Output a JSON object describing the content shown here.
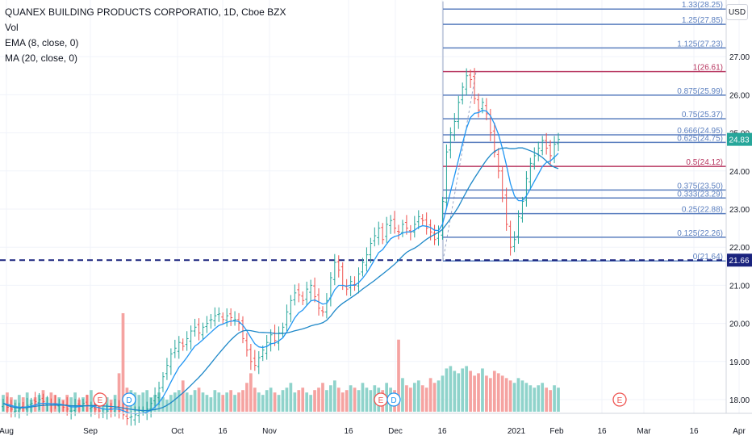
{
  "header": {
    "title": "QUANEX BUILDING PRODUCTS CORPORATIO, 1D, Cboe BZX",
    "indicators": [
      "Vol",
      "EMA (8, close, 0)",
      "MA (20, close, 0)"
    ],
    "currency": "USD"
  },
  "price_tags": {
    "current": "24.83",
    "level": "21.66"
  },
  "events": {
    "earnings_label": "E",
    "dividend_label": "D"
  },
  "colors": {
    "up": "#26a69a",
    "down": "#ef5350",
    "vol_up": "#8fd3cb",
    "vol_down": "#f5a3a1",
    "ema": "#2196f3",
    "ma": "#1e88c8",
    "fib_blue": "#5b7fbf",
    "fib_red": "#b7355f",
    "level_line": "#1a237e",
    "current_tag": "#26a69a"
  },
  "chart_data": {
    "type": "candlestick",
    "y_axis_ticks": [
      "18.00",
      "19.00",
      "20.00",
      "21.00",
      "22.00",
      "23.00",
      "24.00",
      "25.00",
      "26.00",
      "27.00"
    ],
    "x_axis_ticks": [
      "Aug",
      "Sep",
      "Oct",
      "16",
      "Nov",
      "16",
      "Dec",
      "16",
      "2021",
      "Feb",
      "16",
      "Mar",
      "16",
      "Apr"
    ],
    "ylim": [
      17.6,
      28.6
    ],
    "fib_levels": [
      {
        "label": "1.33(28.25)",
        "value": 28.25,
        "color": "blue"
      },
      {
        "label": "1.25(27.85)",
        "value": 27.85,
        "color": "blue"
      },
      {
        "label": "1.125(27.23)",
        "value": 27.23,
        "color": "blue"
      },
      {
        "label": "1(26.61)",
        "value": 26.61,
        "color": "red"
      },
      {
        "label": "0.875(25.99)",
        "value": 25.99,
        "color": "blue"
      },
      {
        "label": "0.75(25.37)",
        "value": 25.37,
        "color": "blue"
      },
      {
        "label": "0.666(24.95)",
        "value": 24.95,
        "color": "blue"
      },
      {
        "label": "0.625(24.75)",
        "value": 24.75,
        "color": "blue"
      },
      {
        "label": "0.5(24.12)",
        "value": 24.12,
        "color": "red"
      },
      {
        "label": "0.375(23.50)",
        "value": 23.5,
        "color": "blue"
      },
      {
        "label": "0.333(23.29)",
        "value": 23.29,
        "color": "blue"
      },
      {
        "label": "0.25(22.88)",
        "value": 22.88,
        "color": "blue"
      },
      {
        "label": "0.125(22.26)",
        "value": 22.26,
        "color": "blue"
      },
      {
        "label": "0(21.64)",
        "value": 21.64,
        "color": "blue"
      }
    ],
    "horizontal_level": 21.66,
    "current_price": 24.83,
    "candles_close": [
      17.9,
      17.8,
      17.75,
      17.7,
      17.75,
      17.8,
      17.85,
      17.9,
      17.95,
      18.0,
      17.95,
      17.9,
      17.85,
      17.9,
      17.85,
      17.8,
      17.75,
      17.7,
      17.8,
      17.85,
      17.9,
      17.85,
      17.8,
      17.75,
      17.7,
      17.65,
      17.7,
      17.75,
      17.8,
      17.7,
      17.6,
      17.5,
      17.55,
      17.6,
      17.65,
      17.7,
      17.75,
      17.9,
      18.1,
      18.3,
      18.6,
      18.9,
      19.2,
      19.35,
      19.5,
      19.4,
      19.6,
      19.8,
      19.9,
      19.75,
      19.9,
      20.0,
      20.1,
      20.2,
      20.25,
      20.1,
      20.2,
      20.15,
      20.1,
      20.0,
      19.6,
      19.3,
      19.0,
      18.9,
      19.1,
      19.3,
      19.5,
      19.7,
      19.55,
      19.75,
      19.9,
      20.3,
      20.6,
      20.8,
      20.75,
      20.6,
      20.9,
      21.0,
      20.7,
      20.4,
      20.3,
      20.6,
      21.2,
      21.6,
      21.4,
      21.0,
      20.9,
      21.1,
      21.0,
      21.3,
      21.6,
      21.8,
      22.1,
      22.3,
      22.5,
      22.2,
      22.6,
      22.7,
      22.5,
      22.4,
      22.6,
      22.5,
      22.4,
      22.6,
      22.8,
      22.7,
      22.5,
      22.4,
      22.2,
      22.4,
      23.2,
      24.5,
      25.0,
      25.3,
      25.8,
      26.2,
      26.5,
      26.4,
      25.9,
      25.6,
      25.8,
      25.5,
      25.0,
      24.5,
      24.0,
      23.3,
      22.6,
      22.0,
      22.2,
      22.8,
      23.2,
      23.8,
      24.2,
      24.4,
      24.6,
      24.8,
      24.6,
      24.4,
      24.7,
      24.83
    ],
    "volume": [
      0.7,
      0.8,
      0.6,
      0.5,
      0.7,
      0.6,
      0.8,
      0.5,
      0.6,
      0.7,
      0.9,
      0.6,
      0.8,
      0.7,
      0.6,
      0.5,
      0.7,
      0.6,
      0.8,
      0.5,
      0.6,
      0.7,
      0.9,
      0.6,
      0.8,
      0.7,
      0.6,
      0.5,
      0.7,
      1.6,
      4.1,
      1.0,
      0.9,
      0.8,
      0.7,
      0.8,
      0.9,
      0.6,
      0.7,
      0.8,
      0.6,
      0.5,
      0.7,
      0.8,
      0.9,
      1.3,
      0.8,
      0.7,
      0.9,
      1.0,
      0.8,
      0.7,
      0.6,
      0.9,
      0.8,
      0.7,
      0.8,
      0.9,
      0.7,
      0.8,
      0.9,
      1.2,
      1.6,
      1.0,
      0.8,
      0.7,
      0.9,
      1.0,
      0.8,
      0.7,
      0.9,
      1.0,
      1.2,
      0.8,
      0.9,
      1.0,
      0.8,
      0.7,
      0.9,
      1.0,
      1.2,
      0.9,
      1.1,
      1.3,
      1.0,
      0.8,
      0.9,
      1.1,
      1.0,
      0.9,
      1.2,
      1.0,
      0.9,
      1.1,
      1.0,
      0.9,
      1.2,
      1.0,
      0.9,
      3.0,
      1.4,
      1.1,
      1.0,
      1.2,
      1.3,
      1.1,
      1.0,
      1.4,
      1.2,
      1.3,
      1.5,
      1.8,
      1.9,
      1.7,
      1.6,
      1.8,
      1.9,
      1.7,
      1.5,
      1.6,
      1.8,
      1.5,
      1.4,
      1.7,
      1.6,
      1.5,
      1.4,
      1.3,
      1.2,
      1.4,
      1.3,
      1.2,
      1.1,
      1.0,
      1.1,
      1.2,
      1.0,
      0.9,
      1.1,
      1.0
    ]
  }
}
